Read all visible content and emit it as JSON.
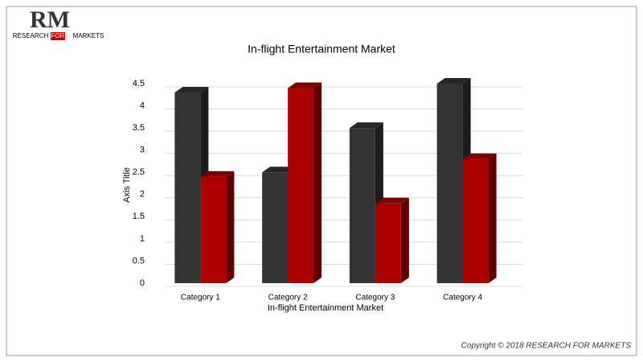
{
  "logo": {
    "mark": "RM",
    "text_left": "RESEARCH",
    "text_mid": "FOR",
    "text_right": "MARKETS"
  },
  "chart_data": {
    "type": "bar3d",
    "title": "In-flight Entertainment Market",
    "x_label": "In-flight Entertainment Market",
    "y_label": "Axis Title",
    "categories": [
      "Category 1",
      "Category 2",
      "Category 3",
      "Category 4"
    ],
    "series": [
      {
        "color": "#333333",
        "values": [
          4.3,
          2.5,
          3.5,
          4.5
        ]
      },
      {
        "color": "#aa0000",
        "values": [
          2.4,
          4.4,
          1.8,
          2.8
        ]
      }
    ],
    "ylim": [
      0,
      4.5
    ],
    "yticks": [
      0,
      0.5,
      1,
      1.5,
      2,
      2.5,
      3,
      3.5,
      4,
      4.5
    ],
    "grid": true
  },
  "footer": "Copyright © 2018 RESEARCH FOR MARKETS"
}
